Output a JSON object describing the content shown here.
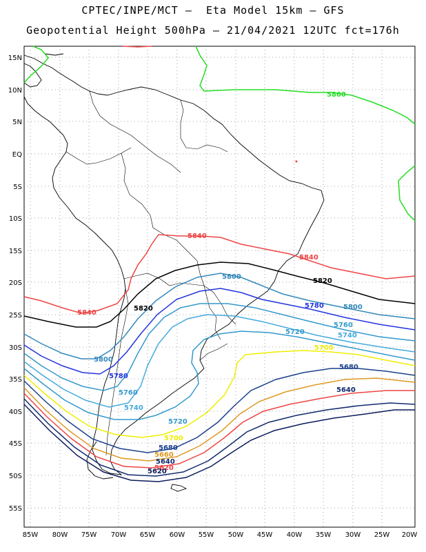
{
  "title_line1": "CPTEC/INPE/MCT –  Eta Model 15km – GFS",
  "title_line2": "Geopotential Height 500hPa – 21/04/2021 12UTC fct=176h",
  "lat_labels": [
    "15N",
    "10N",
    "5N",
    "EQ",
    "5S",
    "10S",
    "15S",
    "20S",
    "25S",
    "30S",
    "35S",
    "40S",
    "45S",
    "50S",
    "55S"
  ],
  "lon_labels": [
    "85W",
    "80W",
    "75W",
    "70W",
    "65W",
    "60W",
    "55W",
    "50W",
    "45W",
    "40W",
    "35W",
    "30W",
    "25W",
    "20W"
  ],
  "colors": {
    "c5860": "#22dd22",
    "c5840": "#ee4444",
    "c5820": "#000000",
    "c5800": "#3388bb",
    "c5780": "#2233dd",
    "c5760": "#3399cc",
    "c5740": "#44aadd",
    "c5720": "#3399cc",
    "c5700": "#eeee00",
    "c5680": "#1a3f8a",
    "c5660": "#dd9922",
    "c5640": "#102a6e",
    "c5620": "#0a1a5a"
  },
  "contours": {
    "l5860": "5860",
    "l5840": "5840",
    "l5820": "5820",
    "l5800": "5800",
    "l5780": "5780",
    "l5760": "5760",
    "l5740": "5740",
    "l5720": "5720",
    "l5700": "5700",
    "l5680": "5680",
    "l5660": "5660",
    "l5640": "5640",
    "l5620": "5620"
  }
}
